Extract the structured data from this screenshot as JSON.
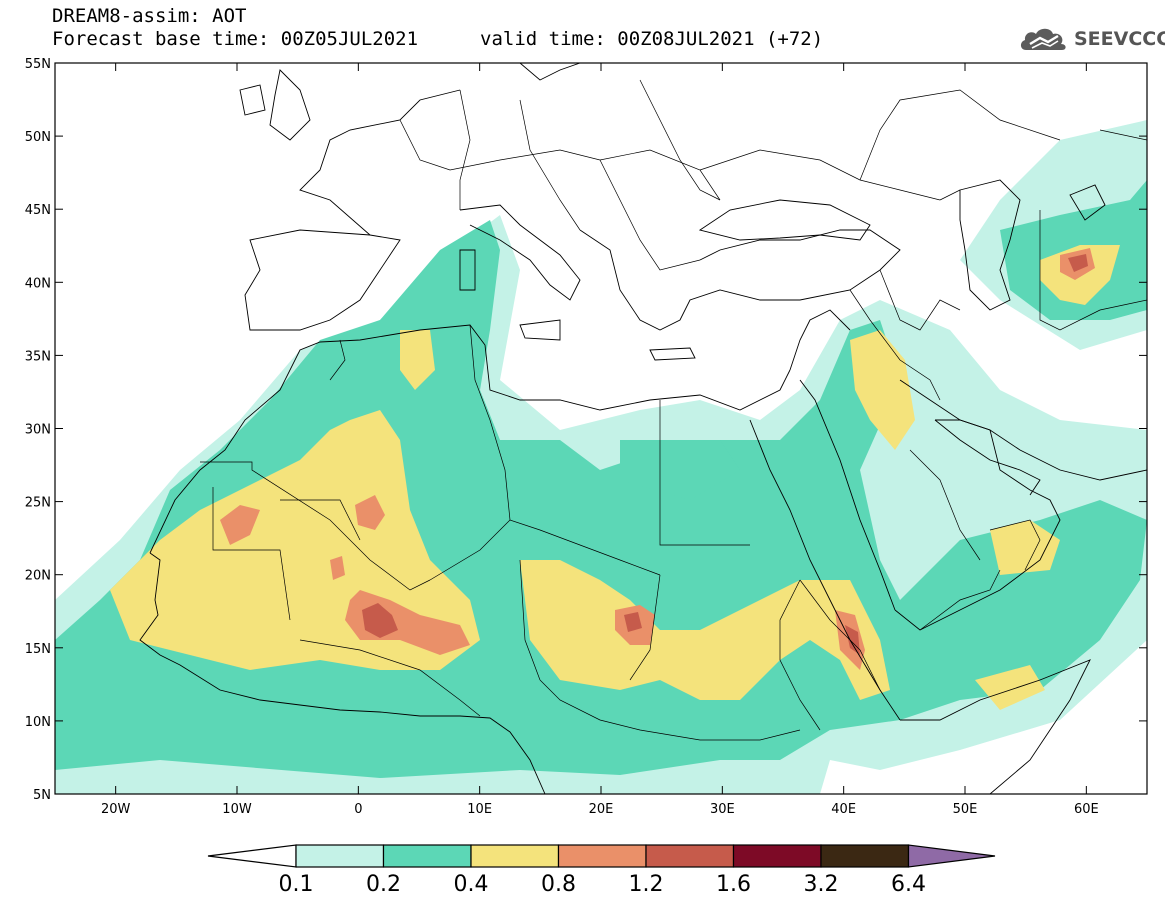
{
  "header": {
    "line1": "DREAM8-assim: AOT",
    "line2_base": "Forecast base time: 00Z05JUL2021",
    "line2_valid": "valid time: 00Z08JUL2021 (+72)"
  },
  "logo": {
    "text": "SEEVCCC",
    "icon": "cloud-logo-icon"
  },
  "map": {
    "lon_range": [
      -25,
      65
    ],
    "lat_range": [
      5,
      55
    ],
    "lon_ticks": [
      {
        "value": -20,
        "label": "20W"
      },
      {
        "value": -10,
        "label": "10W"
      },
      {
        "value": 0,
        "label": "0"
      },
      {
        "value": 10,
        "label": "10E"
      },
      {
        "value": 20,
        "label": "20E"
      },
      {
        "value": 30,
        "label": "30E"
      },
      {
        "value": 40,
        "label": "40E"
      },
      {
        "value": 50,
        "label": "50E"
      },
      {
        "value": 60,
        "label": "60E"
      }
    ],
    "lat_ticks": [
      {
        "value": 55,
        "label": "55N"
      },
      {
        "value": 50,
        "label": "50N"
      },
      {
        "value": 45,
        "label": "45N"
      },
      {
        "value": 40,
        "label": "40N"
      },
      {
        "value": 35,
        "label": "35N"
      },
      {
        "value": 30,
        "label": "30N"
      },
      {
        "value": 25,
        "label": "25N"
      },
      {
        "value": 20,
        "label": "20N"
      },
      {
        "value": 15,
        "label": "15N"
      },
      {
        "value": 10,
        "label": "10N"
      },
      {
        "value": 5,
        "label": "5N"
      }
    ],
    "colors": {
      "c01": "#c4f2e7",
      "c02": "#5cd7b6",
      "c04": "#f4e37c",
      "c08": "#ea9069",
      "c12": "#c65b4b",
      "c16": "#7d0a26",
      "c32": "#3b2813",
      "c64": "#8f6aa6"
    }
  },
  "colorbar": {
    "labels": [
      "0.1",
      "0.2",
      "0.4",
      "0.8",
      "1.2",
      "1.6",
      "3.2",
      "6.4"
    ],
    "colors": [
      "#c4f2e7",
      "#5cd7b6",
      "#f4e37c",
      "#ea9069",
      "#c65b4b",
      "#7d0a26",
      "#3b2813"
    ],
    "over_color": "#8f6aa6",
    "under_color": "#ffffff"
  }
}
